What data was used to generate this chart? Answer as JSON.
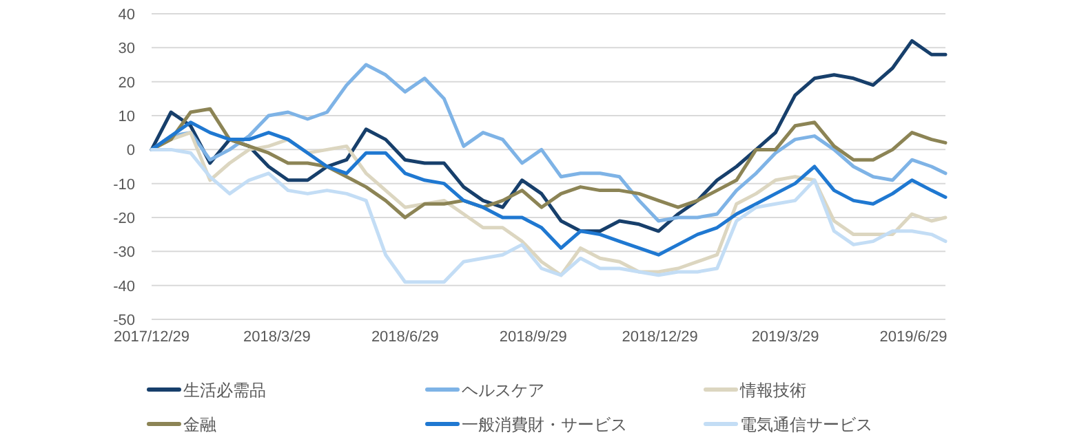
{
  "chart_data": {
    "type": "line",
    "x": [
      "2017-12-29",
      "2018-01-12",
      "2018-01-26",
      "2018-02-09",
      "2018-02-23",
      "2018-03-09",
      "2018-03-23",
      "2018-04-06",
      "2018-04-20",
      "2018-05-04",
      "2018-05-18",
      "2018-06-01",
      "2018-06-15",
      "2018-06-29",
      "2018-07-13",
      "2018-07-27",
      "2018-08-10",
      "2018-08-24",
      "2018-09-07",
      "2018-09-21",
      "2018-10-05",
      "2018-10-19",
      "2018-11-02",
      "2018-11-16",
      "2018-11-30",
      "2018-12-14",
      "2018-12-28",
      "2019-01-11",
      "2019-01-25",
      "2019-02-08",
      "2019-02-22",
      "2019-03-08",
      "2019-03-22",
      "2019-04-05",
      "2019-04-19",
      "2019-05-03",
      "2019-05-17",
      "2019-05-31",
      "2019-06-14",
      "2019-06-28",
      "2019-07-12",
      "2019-07-22"
    ],
    "xlim": [
      "2017-12-29",
      "2019-07-22"
    ],
    "xticks": [
      {
        "value": "2017-12-29",
        "label": "2017/12/29"
      },
      {
        "value": "2018-03-29",
        "label": "2018/3/29"
      },
      {
        "value": "2018-06-29",
        "label": "2018/6/29"
      },
      {
        "value": "2018-09-29",
        "label": "2018/9/29"
      },
      {
        "value": "2018-12-29",
        "label": "2018/12/29"
      },
      {
        "value": "2019-03-29",
        "label": "2019/3/29"
      },
      {
        "value": "2019-06-29",
        "label": "2019/6/29"
      }
    ],
    "ylim": [
      -50,
      40
    ],
    "yticks": [
      -50,
      -40,
      -30,
      -20,
      -10,
      0,
      10,
      20,
      30,
      40
    ],
    "grid": "y",
    "legend": "bottom",
    "series": [
      {
        "name": "生活必需品",
        "color": "#173f6b",
        "values": [
          0,
          11,
          7,
          -4,
          3,
          1,
          -5,
          -9,
          -9,
          -5,
          -3,
          6,
          3,
          -3,
          -4,
          -4,
          -11,
          -15,
          -17,
          -9,
          -13,
          -21,
          -24,
          -24,
          -21,
          -22,
          -24,
          -19,
          -15,
          -9,
          -5,
          0,
          5,
          16,
          21,
          22,
          21,
          19,
          24,
          32,
          28,
          28
        ]
      },
      {
        "name": "ヘルスケア",
        "color": "#7eb3e6",
        "values": [
          0,
          4,
          5,
          -3,
          0,
          4,
          10,
          11,
          9,
          11,
          19,
          25,
          22,
          17,
          21,
          15,
          1,
          5,
          3,
          -4,
          0,
          -8,
          -7,
          -7,
          -8,
          -15,
          -21,
          -20,
          -20,
          -19,
          -12,
          -7,
          -1,
          3,
          4,
          0,
          -5,
          -8,
          -9,
          -3,
          -5,
          -7
        ]
      },
      {
        "name": "情報技術",
        "color": "#dcd6c0",
        "values": [
          0,
          3,
          5,
          -9,
          -4,
          0,
          1,
          3,
          -1,
          0,
          1,
          -7,
          -12,
          -17,
          -16,
          -15,
          -19,
          -23,
          -23,
          -27,
          -33,
          -37,
          -29,
          -32,
          -33,
          -36,
          -36,
          -35,
          -33,
          -31,
          -16,
          -13,
          -9,
          -8,
          -9,
          -21,
          -25,
          -25,
          -25,
          -19,
          -21,
          -20
        ]
      },
      {
        "name": "金融",
        "color": "#8c8455",
        "values": [
          0,
          3,
          11,
          12,
          3,
          1,
          -1,
          -4,
          -4,
          -5,
          -8,
          -11,
          -15,
          -20,
          -16,
          -16,
          -15,
          -17,
          -15,
          -12,
          -17,
          -13,
          -11,
          -12,
          -12,
          -13,
          -15,
          -17,
          -15,
          -12,
          -9,
          0,
          0,
          7,
          8,
          1,
          -3,
          -3,
          0,
          5,
          3,
          2
        ]
      },
      {
        "name": "一般消費財・サービス",
        "color": "#1f78d1",
        "values": [
          0,
          4,
          8,
          5,
          3,
          3,
          5,
          3,
          -1,
          -5,
          -7,
          -1,
          -1,
          -7,
          -9,
          -10,
          -15,
          -17,
          -20,
          -20,
          -23,
          -29,
          -24,
          -25,
          -27,
          -29,
          -31,
          -28,
          -25,
          -23,
          -19,
          -16,
          -13,
          -10,
          -5,
          -12,
          -15,
          -16,
          -13,
          -9,
          -12,
          -14
        ]
      },
      {
        "name": "電気通信サービス",
        "color": "#c3ddf5",
        "values": [
          0,
          0,
          -1,
          -8,
          -13,
          -9,
          -7,
          -12,
          -13,
          -12,
          -13,
          -15,
          -31,
          -39,
          -39,
          -39,
          -33,
          -32,
          -31,
          -28,
          -35,
          -37,
          -32,
          -35,
          -35,
          -36,
          -37,
          -36,
          -36,
          -35,
          -21,
          -17,
          -16,
          -15,
          -9,
          -24,
          -28,
          -27,
          -24,
          -24,
          -25,
          -27
        ]
      }
    ]
  }
}
